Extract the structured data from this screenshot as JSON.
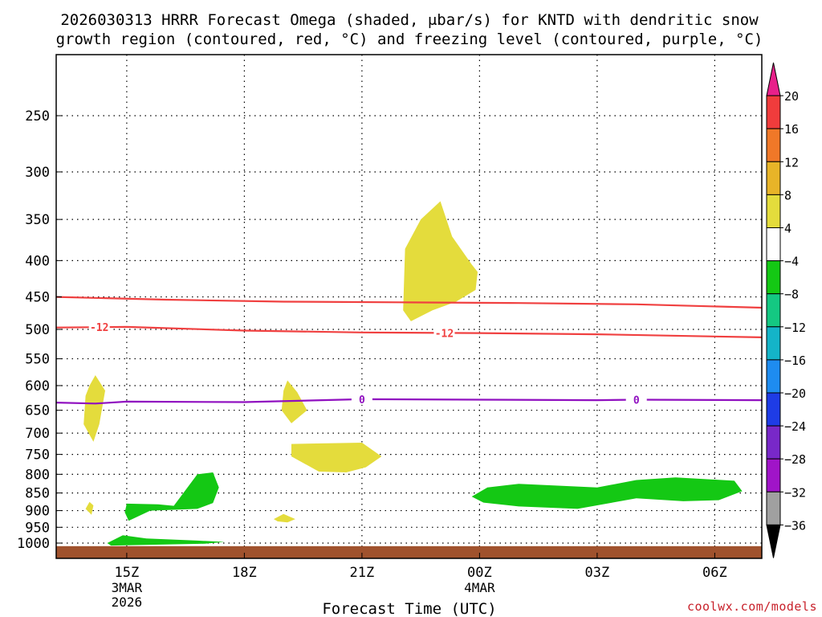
{
  "chart_data": {
    "type": "contour-cross-section",
    "title_line1": "2026030313 HRRR Forecast Omega (shaded, μbar/s) for KNTD with dendritic snow",
    "title_line2": "growth region (contoured, red, °C) and freezing level (contoured, purple, °C)",
    "xlabel": "Forecast Time (UTC)",
    "x_range_hours": [
      13.2,
      31.2
    ],
    "y_range_hPa": [
      200,
      1010
    ],
    "x_ticks": [
      {
        "hour": 15,
        "label": "15Z",
        "sub1": "3MAR",
        "sub2": "2026"
      },
      {
        "hour": 18,
        "label": "18Z",
        "sub1": "",
        "sub2": ""
      },
      {
        "hour": 21,
        "label": "21Z",
        "sub1": "",
        "sub2": ""
      },
      {
        "hour": 24,
        "label": "00Z",
        "sub1": "4MAR",
        "sub2": ""
      },
      {
        "hour": 27,
        "label": "03Z",
        "sub1": "",
        "sub2": ""
      },
      {
        "hour": 30,
        "label": "06Z",
        "sub1": "",
        "sub2": ""
      }
    ],
    "y_ticks": [
      250,
      300,
      350,
      400,
      450,
      500,
      550,
      600,
      650,
      700,
      750,
      800,
      850,
      900,
      950,
      1000
    ],
    "surface_pressure_hPa": 1010,
    "colorbar": {
      "labels": [
        "20",
        "16",
        "12",
        "8",
        "4",
        "−4",
        "−8",
        "−12",
        "−16",
        "−20",
        "−24",
        "−28",
        "−32",
        "−36"
      ],
      "bins": [
        {
          "color": "#e8208a",
          "kind": "triangle-top"
        },
        {
          "color": "#f03c3c"
        },
        {
          "color": "#f07828"
        },
        {
          "color": "#e8b428"
        },
        {
          "color": "#e4dc3c"
        },
        {
          "color": "#ffffff"
        },
        {
          "color": "#14c814"
        },
        {
          "color": "#14c882"
        },
        {
          "color": "#14b4c8"
        },
        {
          "color": "#1e8cf0"
        },
        {
          "color": "#1e3ce6"
        },
        {
          "color": "#7828c8"
        },
        {
          "color": "#a014c8"
        },
        {
          "color": "#a0a0a0"
        },
        {
          "color": "#000000",
          "kind": "triangle-bottom"
        }
      ]
    },
    "contour_lines": [
      {
        "name": "isotherm-minus-15",
        "color": "#f04040",
        "label": "",
        "points": [
          [
            13.2,
            450
          ],
          [
            16,
            454
          ],
          [
            19,
            457
          ],
          [
            22,
            458
          ],
          [
            25,
            459
          ],
          [
            28,
            461
          ],
          [
            31.2,
            466
          ]
        ]
      },
      {
        "name": "isotherm-minus-12",
        "color": "#f04040",
        "label": "-12",
        "label_hours": [
          14.3,
          23.1
        ],
        "points": [
          [
            13.2,
            497
          ],
          [
            15,
            496
          ],
          [
            18,
            502
          ],
          [
            21,
            505
          ],
          [
            24,
            506
          ],
          [
            27,
            508
          ],
          [
            31.2,
            513
          ]
        ]
      },
      {
        "name": "freezing-level",
        "color": "#9010c0",
        "label": "0",
        "label_hours": [
          21.0,
          28.0
        ],
        "points": [
          [
            13.2,
            634
          ],
          [
            14.2,
            636
          ],
          [
            15,
            632
          ],
          [
            18,
            633
          ],
          [
            21,
            627
          ],
          [
            24,
            628
          ],
          [
            27,
            629
          ],
          [
            28,
            628
          ],
          [
            31.2,
            629
          ]
        ]
      }
    ],
    "shaded_regions": [
      {
        "name": "omega-positive-upper",
        "color": "#e4dc3c",
        "value_range": "4 to 8",
        "points": [
          [
            22.05,
            470
          ],
          [
            22.1,
            385
          ],
          [
            22.5,
            350
          ],
          [
            23.0,
            330
          ],
          [
            23.3,
            370
          ],
          [
            23.8,
            405
          ],
          [
            23.95,
            415
          ],
          [
            23.9,
            440
          ],
          [
            23.4,
            457
          ],
          [
            22.8,
            470
          ],
          [
            22.25,
            487
          ]
        ]
      },
      {
        "name": "omega-positive-left-small",
        "color": "#e4dc3c",
        "value_range": "4 to 8",
        "points": [
          [
            14.05,
            600
          ],
          [
            14.2,
            580
          ],
          [
            14.45,
            610
          ],
          [
            14.3,
            680
          ],
          [
            14.15,
            720
          ],
          [
            13.9,
            680
          ],
          [
            13.95,
            620
          ]
        ]
      },
      {
        "name": "omega-positive-mid-small",
        "color": "#e4dc3c",
        "value_range": "4 to 8",
        "points": [
          [
            19.0,
            610
          ],
          [
            19.1,
            590
          ],
          [
            19.35,
            613
          ],
          [
            19.6,
            650
          ],
          [
            19.2,
            678
          ],
          [
            18.95,
            650
          ]
        ]
      },
      {
        "name": "omega-positive-low-band",
        "color": "#e4dc3c",
        "value_range": "4 to 8",
        "points": [
          [
            19.2,
            725
          ],
          [
            21.0,
            722
          ],
          [
            21.5,
            755
          ],
          [
            21.1,
            782
          ],
          [
            20.6,
            795
          ],
          [
            19.9,
            793
          ],
          [
            19.2,
            755
          ]
        ]
      },
      {
        "name": "omega-positive-tiny-left",
        "color": "#e4dc3c",
        "value_range": "4 to 8",
        "points": [
          [
            13.95,
            895
          ],
          [
            14.05,
            875
          ],
          [
            14.15,
            885
          ],
          [
            14.1,
            912
          ]
        ]
      },
      {
        "name": "omega-positive-tiny-mid",
        "color": "#e4dc3c",
        "value_range": "4 to 8",
        "points": [
          [
            18.75,
            925
          ],
          [
            19.0,
            910
          ],
          [
            19.3,
            925
          ],
          [
            19.1,
            935
          ],
          [
            18.85,
            932
          ]
        ]
      },
      {
        "name": "omega-negative-left-upper",
        "color": "#14c814",
        "value_range": "-4 to -8",
        "points": [
          [
            15.0,
            880
          ],
          [
            15.8,
            882
          ],
          [
            16.2,
            886
          ],
          [
            16.8,
            800
          ],
          [
            17.2,
            795
          ],
          [
            17.35,
            835
          ],
          [
            17.2,
            878
          ],
          [
            16.8,
            895
          ],
          [
            15.6,
            900
          ],
          [
            15.05,
            930
          ],
          [
            14.95,
            905
          ]
        ]
      },
      {
        "name": "omega-negative-left-lower",
        "color": "#14c814",
        "value_range": "-4 to -8",
        "points": [
          [
            14.5,
            1000
          ],
          [
            14.9,
            975
          ],
          [
            15.5,
            985
          ],
          [
            16.8,
            992
          ],
          [
            17.5,
            996
          ],
          [
            17.0,
            1002
          ],
          [
            14.6,
            1008
          ]
        ]
      },
      {
        "name": "omega-negative-right",
        "color": "#14c814",
        "value_range": "-4 to -8",
        "points": [
          [
            23.8,
            860
          ],
          [
            24.2,
            835
          ],
          [
            25.0,
            825
          ],
          [
            27.0,
            835
          ],
          [
            28.0,
            815
          ],
          [
            29.0,
            808
          ],
          [
            30.5,
            817
          ],
          [
            30.7,
            845
          ],
          [
            30.1,
            870
          ],
          [
            29.2,
            873
          ],
          [
            28.0,
            865
          ],
          [
            26.5,
            895
          ],
          [
            25.0,
            888
          ],
          [
            24.1,
            877
          ]
        ]
      }
    ]
  },
  "watermark": "coolwx.com/models"
}
